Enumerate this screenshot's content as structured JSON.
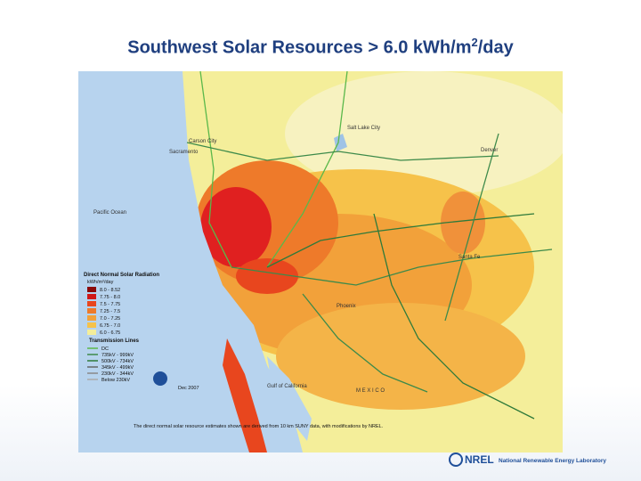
{
  "header": {
    "title_main": "Southwest Solar Resources > 6.0 kWh/m",
    "title_sup": "2",
    "title_end": "/day"
  },
  "map": {
    "places": [
      "Carson City",
      "Sacramento",
      "Salt Lake City",
      "Denver",
      "Santa Fe",
      "Phoenix",
      "Pacific Ocean",
      "Gulf of California",
      "M E X I C O"
    ],
    "legend_title": "Direct Normal Solar Radiation",
    "legend_unit": "kWh/m²/day",
    "radiation_classes": [
      "8.0 - 8.52",
      "7.75 - 8.0",
      "7.5 - 7.75",
      "7.25 - 7.5",
      "7.0 - 7.25",
      "6.75 - 7.0",
      "6.0 - 6.75"
    ],
    "lines_title": "Transmission Lines",
    "line_classes": [
      "DC",
      "735kV - 999kV",
      "500kV - 734kV",
      "345kV - 499kV",
      "230kV - 344kV",
      "Below 230kV"
    ],
    "date": "Dec 2007",
    "note": "The direct normal solar resource estimates shown are derived from 10 km SUNY data, with modifications by NREL."
  },
  "footer": {
    "logo": "NREL",
    "org": "National Renewable Energy Laboratory"
  }
}
